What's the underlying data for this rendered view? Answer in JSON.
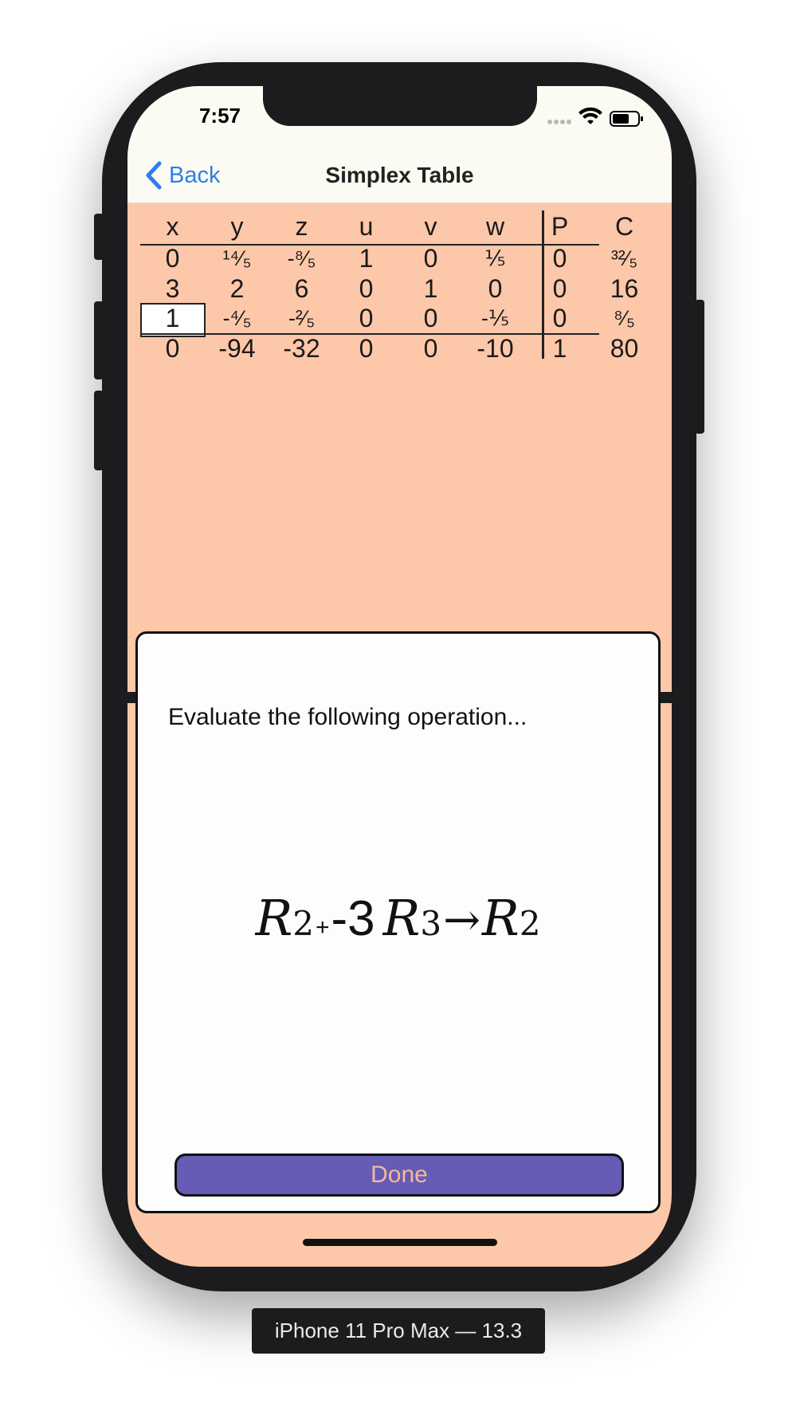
{
  "status": {
    "time": "7:57"
  },
  "nav": {
    "back_label": "Back",
    "title": "Simplex Table"
  },
  "tableau": {
    "headers": [
      "x",
      "y",
      "z",
      "u",
      "v",
      "w",
      "P",
      "C"
    ],
    "rows": [
      [
        "0",
        "¹⁴⁄₅",
        "-⁸⁄₅",
        "1",
        "0",
        "⅕",
        "0",
        "³²⁄₅"
      ],
      [
        "3",
        "2",
        "6",
        "0",
        "1",
        "0",
        "0",
        "16"
      ],
      [
        "1",
        "-⁴⁄₅",
        "-²⁄₅",
        "0",
        "0",
        "-⅕",
        "0",
        "⁸⁄₅"
      ],
      [
        "0",
        "-94",
        "-32",
        "0",
        "0",
        "-10",
        "1",
        "80"
      ]
    ],
    "pivot": {
      "row": 2,
      "col": 0
    }
  },
  "dialog": {
    "prompt": "Evaluate the following operation...",
    "operation": {
      "r1": "R",
      "r1_sub": "2",
      "plus": "+",
      "coef": "-3",
      "r2": "R",
      "r2_sub": "3",
      "arrow": "→",
      "r3": "R",
      "r3_sub": "2"
    },
    "done_label": "Done"
  },
  "device_label": "iPhone 11 Pro Max — 13.3",
  "colors": {
    "background": "#fcc8a9",
    "nav_bar": "#fcfbf3",
    "link": "#2f7de6",
    "done_button": "#665bb5",
    "done_text": "#f6b899"
  }
}
